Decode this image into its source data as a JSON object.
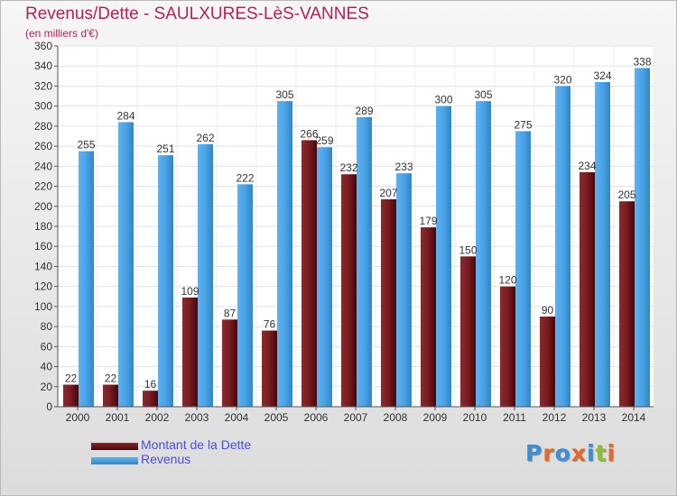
{
  "title": "Revenus/Dette - SAULXURES-LèS-VANNES",
  "subtitle": "(en milliers d'€)",
  "legend": [
    {
      "label": "Montant de la Dette",
      "color": "#6b0e12"
    },
    {
      "label": "Revenus",
      "color": "#4a9fe3"
    }
  ],
  "logo": {
    "text": "Proxiti",
    "letters": [
      {
        "char": "P",
        "color": "#3a8fd4"
      },
      {
        "char": "r",
        "color": "#e2682c"
      },
      {
        "char": "o",
        "color": "#3a8fd4"
      },
      {
        "char": "x",
        "color": "#e2682c"
      },
      {
        "char": "i",
        "color": "#3a8fd4"
      },
      {
        "char": "t",
        "color": "#8cbf2c"
      },
      {
        "char": "i",
        "color": "#e2682c"
      }
    ]
  },
  "chart_data": {
    "type": "bar",
    "categories": [
      "2000",
      "2001",
      "2002",
      "2003",
      "2004",
      "2005",
      "2006",
      "2007",
      "2008",
      "2009",
      "2010",
      "2011",
      "2012",
      "2013",
      "2014"
    ],
    "series": [
      {
        "name": "Montant de la Dette",
        "color": "#6b0e12",
        "values": [
          22,
          22,
          16,
          109,
          87,
          76,
          266,
          232,
          207,
          179,
          150,
          120,
          90,
          234,
          205
        ]
      },
      {
        "name": "Revenus",
        "color": "#4a9fe3",
        "values": [
          255,
          284,
          251,
          262,
          222,
          305,
          259,
          289,
          233,
          300,
          305,
          275,
          320,
          324,
          338
        ]
      }
    ],
    "ylim": [
      0,
      360
    ],
    "ytick_step": 20,
    "grid": true,
    "legend_position": "bottom-left"
  }
}
